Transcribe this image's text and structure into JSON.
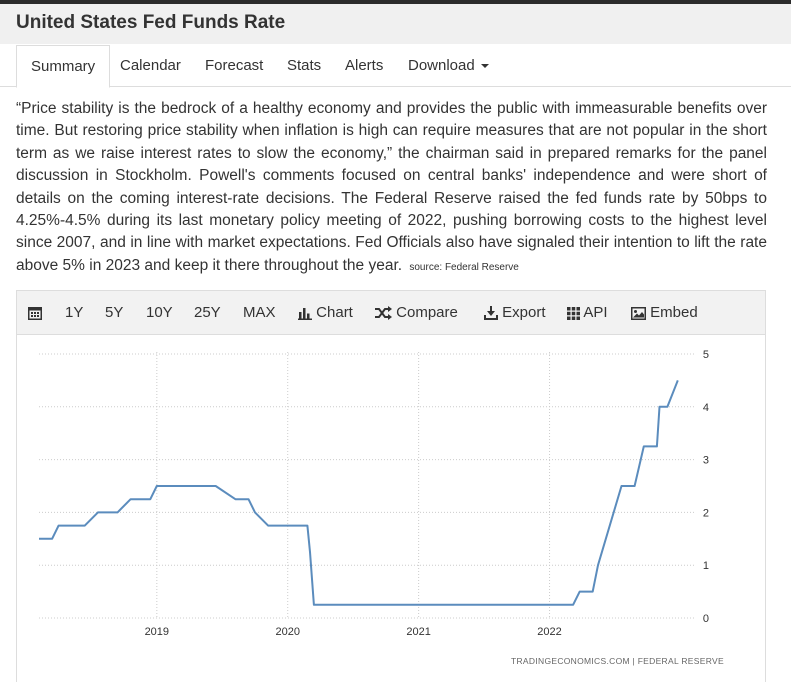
{
  "header": {
    "title": "United States Fed Funds Rate"
  },
  "tabs": [
    {
      "label": "Summary"
    },
    {
      "label": "Calendar"
    },
    {
      "label": "Forecast"
    },
    {
      "label": "Stats"
    },
    {
      "label": "Alerts"
    },
    {
      "label": "Download"
    }
  ],
  "description": {
    "text": "“Price stability is the bedrock of a healthy economy and provides the public with immeasurable benefits over time. But restoring price stability when inflation is high can require measures that are not popular in the short term as we raise interest rates to slow the economy,” the chairman said in prepared remarks for the panel discussion in Stockholm. Powell's comments focused on central banks' independence and were short of details on the coming interest-rate decisions. The Federal Reserve raised the fed funds rate by 50bps to 4.25%-4.5% during its last monetary policy meeting of 2022, pushing borrowing costs to the highest level since 2007, and in line with market expectations. Fed Officials also have signaled their intention to lift the rate above 5% in 2023 and keep it there throughout the year.",
    "source": "source: Federal Reserve"
  },
  "toolbar": {
    "range_1y": "1Y",
    "range_5y": "5Y",
    "range_10y": "10Y",
    "range_25y": "25Y",
    "range_max": "MAX",
    "chart": "Chart",
    "compare": "Compare",
    "export": "Export",
    "api": "API",
    "embed": "Embed"
  },
  "watermark": "TRADINGECONOMICS.COM  |  FEDERAL RESERVE",
  "colors": {
    "line": "#5b8cbd",
    "grid": "#cccccc"
  },
  "chart_data": {
    "type": "line",
    "xlim": [
      2018.1,
      2023.05
    ],
    "ylim": [
      0,
      5
    ],
    "yticks": [
      0,
      1,
      2,
      3,
      4,
      5
    ],
    "xticks": [
      {
        "value": 2019.0,
        "label": "2019"
      },
      {
        "value": 2020.0,
        "label": "2020"
      },
      {
        "value": 2021.0,
        "label": "2021"
      },
      {
        "value": 2022.0,
        "label": "2022"
      }
    ],
    "grid": true,
    "series": [
      {
        "values": [
          [
            2018.1,
            1.5
          ],
          [
            2018.2,
            1.5
          ],
          [
            2018.25,
            1.75
          ],
          [
            2018.45,
            1.75
          ],
          [
            2018.55,
            2.0
          ],
          [
            2018.7,
            2.0
          ],
          [
            2018.8,
            2.25
          ],
          [
            2018.95,
            2.25
          ],
          [
            2019.0,
            2.5
          ],
          [
            2019.45,
            2.5
          ],
          [
            2019.6,
            2.25
          ],
          [
            2019.7,
            2.25
          ],
          [
            2019.75,
            2.0
          ],
          [
            2019.85,
            1.75
          ],
          [
            2020.15,
            1.75
          ],
          [
            2020.17,
            1.25
          ],
          [
            2020.2,
            0.25
          ],
          [
            2022.18,
            0.25
          ],
          [
            2022.23,
            0.5
          ],
          [
            2022.33,
            0.5
          ],
          [
            2022.37,
            1.0
          ],
          [
            2022.55,
            2.5
          ],
          [
            2022.65,
            2.5
          ],
          [
            2022.72,
            3.25
          ],
          [
            2022.82,
            3.25
          ],
          [
            2022.84,
            4.0
          ],
          [
            2022.9,
            4.0
          ],
          [
            2022.98,
            4.5
          ]
        ]
      }
    ]
  }
}
